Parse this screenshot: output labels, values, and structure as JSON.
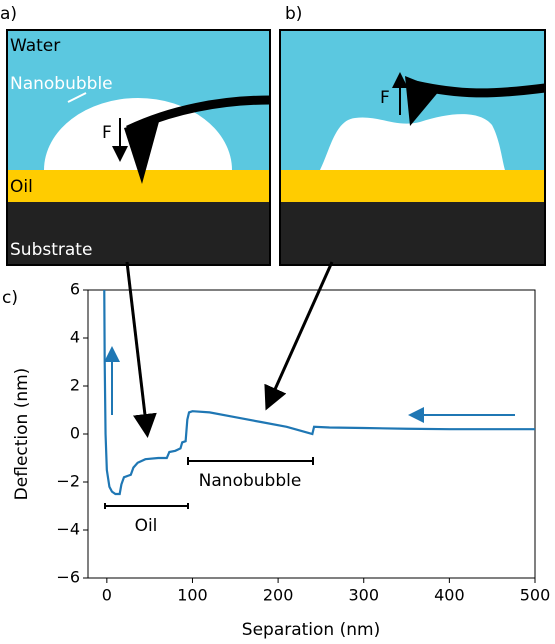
{
  "panels": {
    "a": {
      "label": "a)",
      "water": "Water",
      "nanobubble": "Nanobubble",
      "force": "F",
      "oil": "Oil",
      "substrate": "Substrate"
    },
    "b": {
      "label": "b)",
      "force": "F"
    }
  },
  "chart_data": {
    "type": "line",
    "label": "c)",
    "xlabel": "Separation (nm)",
    "ylabel": "Deflection (nm)",
    "annotations": [
      "Oil",
      "Nanobubble"
    ],
    "xlim": [
      -22,
      500
    ],
    "ylim": [
      -6,
      6
    ],
    "xticks": [
      0,
      100,
      200,
      300,
      400,
      500
    ],
    "yticks": [
      {
        "value": -6,
        "label": "−6"
      },
      {
        "value": -4,
        "label": "−4"
      },
      {
        "value": -2,
        "label": "−2"
      },
      0,
      2,
      4,
      6
    ],
    "series": [
      {
        "color": "#1f77b4",
        "x": [
          -3,
          -2.5,
          -1.5,
          0,
          3,
          6,
          10,
          15,
          17,
          20,
          28,
          31,
          36,
          45,
          60,
          70,
          73,
          80,
          86,
          88,
          92,
          94,
          96,
          100,
          120,
          150,
          180,
          210,
          235,
          240,
          242,
          260,
          300,
          350,
          400,
          450,
          500
        ],
        "y": [
          6,
          3,
          0,
          -1.5,
          -2.2,
          -2.4,
          -2.5,
          -2.5,
          -2.1,
          -1.8,
          -1.7,
          -1.4,
          -1.2,
          -1.05,
          -1.0,
          -1.0,
          -0.75,
          -0.7,
          -0.6,
          -0.35,
          -0.3,
          0.6,
          0.9,
          0.95,
          0.9,
          0.7,
          0.5,
          0.3,
          0.05,
          0.0,
          0.3,
          0.27,
          0.25,
          0.22,
          0.2,
          0.2,
          0.2
        ]
      }
    ]
  }
}
